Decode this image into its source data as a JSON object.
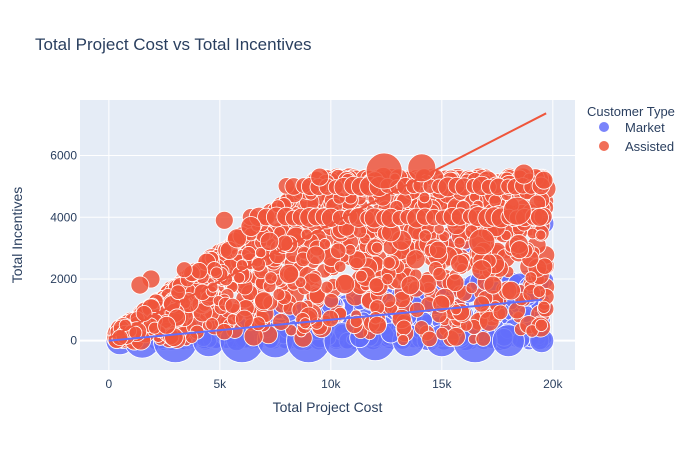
{
  "chart_data": {
    "type": "scatter",
    "title": "Total Project Cost vs Total Incentives",
    "xlabel": "Total Project Cost",
    "ylabel": "Total Incentives",
    "xlim": [
      -1300,
      21000
    ],
    "ylim": [
      -950,
      7800
    ],
    "x_ticks": [
      {
        "value": 0,
        "label": "0"
      },
      {
        "value": 5000,
        "label": "5k"
      },
      {
        "value": 10000,
        "label": "10k"
      },
      {
        "value": 15000,
        "label": "15k"
      },
      {
        "value": 20000,
        "label": "20k"
      }
    ],
    "y_ticks": [
      {
        "value": 0,
        "label": "0"
      },
      {
        "value": 2000,
        "label": "2000"
      },
      {
        "value": 4000,
        "label": "4000"
      },
      {
        "value": 6000,
        "label": "6000"
      }
    ],
    "grid": true,
    "legend": {
      "title": "Customer Type",
      "placement": "top-right"
    },
    "series": [
      {
        "name": "Market",
        "color": "#636efa",
        "trendline": {
          "slope": 0.068,
          "intercept": 0,
          "x_range": [
            0,
            19500
          ]
        },
        "band": {
          "x_range": [
            1000,
            19700
          ],
          "floor": 0,
          "ceiling_slope": 0.1,
          "ceiling_intercept": 200,
          "ceiling_max": 2000
        },
        "points": [
          {
            "x": 500,
            "y": 0,
            "s": 14
          },
          {
            "x": 1500,
            "y": 20,
            "s": 18
          },
          {
            "x": 3000,
            "y": 0,
            "s": 22
          },
          {
            "x": 4500,
            "y": 0,
            "s": 16
          },
          {
            "x": 6000,
            "y": 0,
            "s": 22
          },
          {
            "x": 7500,
            "y": 30,
            "s": 18
          },
          {
            "x": 9000,
            "y": 0,
            "s": 22
          },
          {
            "x": 10500,
            "y": 0,
            "s": 18
          },
          {
            "x": 12000,
            "y": 0,
            "s": 20
          },
          {
            "x": 13500,
            "y": 0,
            "s": 16
          },
          {
            "x": 15000,
            "y": 0,
            "s": 16
          },
          {
            "x": 16500,
            "y": 0,
            "s": 22
          },
          {
            "x": 18000,
            "y": 0,
            "s": 16
          },
          {
            "x": 19500,
            "y": 0,
            "s": 12
          },
          {
            "x": 15000,
            "y": 3200,
            "s": 11
          },
          {
            "x": 15800,
            "y": 3400,
            "s": 11
          },
          {
            "x": 16200,
            "y": 3000,
            "s": 10
          },
          {
            "x": 16800,
            "y": 1900,
            "s": 12
          },
          {
            "x": 17200,
            "y": 1600,
            "s": 12
          },
          {
            "x": 18500,
            "y": 1800,
            "s": 12
          },
          {
            "x": 19000,
            "y": 1700,
            "s": 12
          },
          {
            "x": 19300,
            "y": 1900,
            "s": 12
          },
          {
            "x": 18800,
            "y": 1500,
            "s": 12
          },
          {
            "x": 17000,
            "y": 600,
            "s": 10
          },
          {
            "x": 15500,
            "y": 350,
            "s": 10
          },
          {
            "x": 14700,
            "y": 1200,
            "s": 11
          },
          {
            "x": 14300,
            "y": 3400,
            "s": 10
          },
          {
            "x": 17600,
            "y": 3700,
            "s": 10
          },
          {
            "x": 18200,
            "y": 3700,
            "s": 10
          },
          {
            "x": 19600,
            "y": 3800,
            "s": 10
          },
          {
            "x": 11300,
            "y": 100,
            "s": 10
          },
          {
            "x": 12700,
            "y": 250,
            "s": 10
          }
        ]
      },
      {
        "name": "Assisted",
        "color": "#ef553b",
        "trendline": {
          "slope": 0.37,
          "intercept": 80,
          "x_range": [
            0,
            19700
          ]
        },
        "band": {
          "x_range": [
            300,
            19700
          ],
          "floor": 0,
          "ceiling_slope": 0.56,
          "ceiling_intercept": 100,
          "ceiling_max": 5300
        },
        "points": [
          {
            "x": 12400,
            "y": 5500,
            "s": 18
          },
          {
            "x": 14100,
            "y": 5600,
            "s": 14
          },
          {
            "x": 18700,
            "y": 5400,
            "s": 10
          },
          {
            "x": 18400,
            "y": 4200,
            "s": 14
          },
          {
            "x": 16800,
            "y": 3200,
            "s": 13
          },
          {
            "x": 6400,
            "y": 3700,
            "s": 10
          },
          {
            "x": 5200,
            "y": 3900,
            "s": 9
          },
          {
            "x": 1900,
            "y": 2000,
            "s": 9
          },
          {
            "x": 1400,
            "y": 1800,
            "s": 9
          },
          {
            "x": 2600,
            "y": 500,
            "s": 9
          },
          {
            "x": 500,
            "y": 100,
            "s": 8
          },
          {
            "x": 3400,
            "y": 2300,
            "s": 8
          },
          {
            "x": 9500,
            "y": 5300,
            "s": 9
          },
          {
            "x": 16800,
            "y": 2300,
            "s": 10
          },
          {
            "x": 18500,
            "y": 2950,
            "s": 9
          },
          {
            "x": 12100,
            "y": 500,
            "s": 9
          },
          {
            "x": 6100,
            "y": 700,
            "s": 9
          },
          {
            "x": 15800,
            "y": 2500,
            "s": 9
          },
          {
            "x": 19600,
            "y": 5200,
            "s": 9
          },
          {
            "x": 19400,
            "y": 4000,
            "s": 9
          },
          {
            "x": 17300,
            "y": 1800,
            "s": 9
          }
        ]
      }
    ]
  }
}
